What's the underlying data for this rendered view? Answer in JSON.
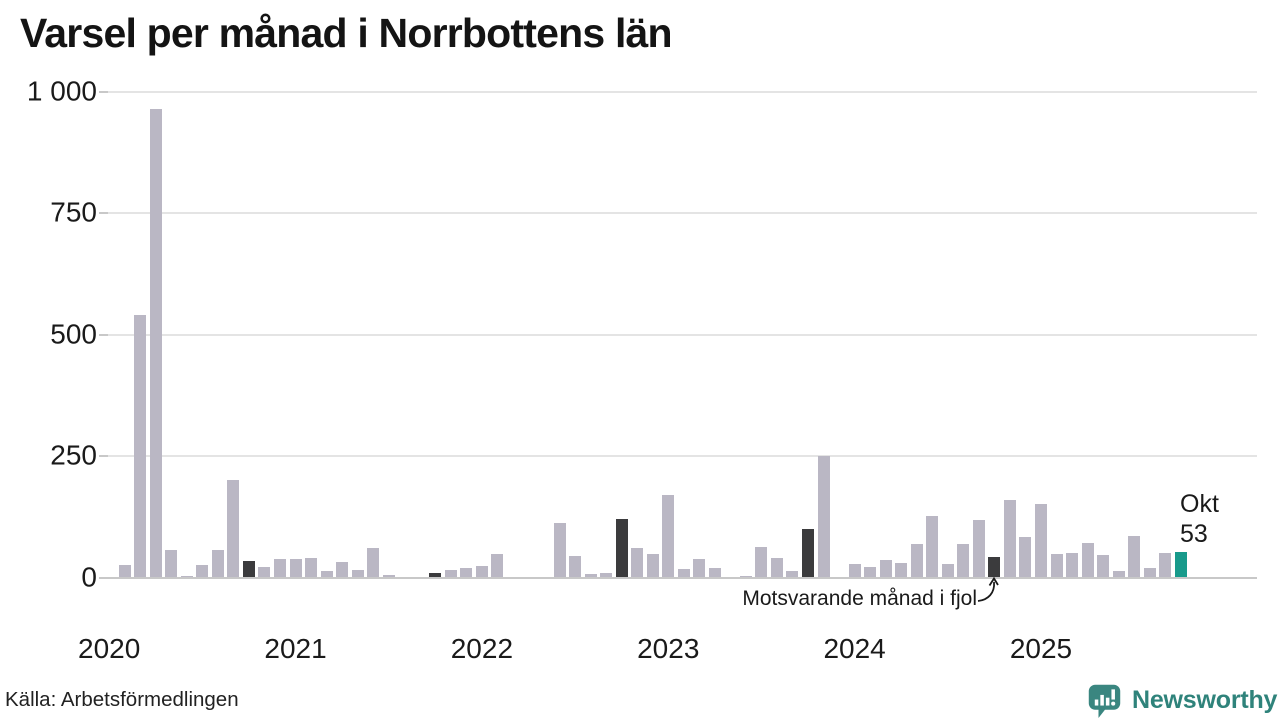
{
  "title": "Varsel per månad i Norrbottens län",
  "source": "Källa: Arbetsförmedlingen",
  "branding": {
    "name": "Newsworthy",
    "icon": "newsworthy-speech-bubble-chart-icon",
    "color": "#2f837b"
  },
  "colors": {
    "bar_default": "#bab7c4",
    "bar_last_year": "#3b3b3d",
    "bar_current": "#189a8b",
    "gridline": "#e4e4e4",
    "axis_line": "#c8c8c8",
    "text": "#1a1a1a"
  },
  "chart_data": {
    "type": "bar",
    "title": "Varsel per månad i Norrbottens län",
    "xlabel": "",
    "ylabel": "",
    "ylim": [
      0,
      1000
    ],
    "grid": "horizontal",
    "yticks": [
      {
        "value": 0,
        "label": "0"
      },
      {
        "value": 250,
        "label": "250"
      },
      {
        "value": 500,
        "label": "500"
      },
      {
        "value": 750,
        "label": "750"
      },
      {
        "value": 1000,
        "label": "1 000"
      }
    ],
    "year_ticks": [
      {
        "label": "2020",
        "month_index": -1
      },
      {
        "label": "2021",
        "month_index": 11
      },
      {
        "label": "2022",
        "month_index": 23
      },
      {
        "label": "2023",
        "month_index": 35
      },
      {
        "label": "2024",
        "month_index": 47
      },
      {
        "label": "2025",
        "month_index": 59
      }
    ],
    "annotations": {
      "last_year_note": "Motsvarande månad i fjol",
      "current_label": [
        "Okt",
        "53"
      ]
    },
    "bars": [
      {
        "month": "2020-02",
        "value": 25,
        "kind": "normal"
      },
      {
        "month": "2020-03",
        "value": 540,
        "kind": "normal"
      },
      {
        "month": "2020-04",
        "value": 965,
        "kind": "normal"
      },
      {
        "month": "2020-05",
        "value": 56,
        "kind": "normal"
      },
      {
        "month": "2020-06",
        "value": 2,
        "kind": "normal"
      },
      {
        "month": "2020-07",
        "value": 26,
        "kind": "normal"
      },
      {
        "month": "2020-08",
        "value": 56,
        "kind": "normal"
      },
      {
        "month": "2020-09",
        "value": 200,
        "kind": "normal"
      },
      {
        "month": "2020-10",
        "value": 34,
        "kind": "last_year"
      },
      {
        "month": "2020-11",
        "value": 21,
        "kind": "normal"
      },
      {
        "month": "2020-12",
        "value": 38,
        "kind": "normal"
      },
      {
        "month": "2021-01",
        "value": 38,
        "kind": "normal"
      },
      {
        "month": "2021-02",
        "value": 41,
        "kind": "normal"
      },
      {
        "month": "2021-03",
        "value": 13,
        "kind": "normal"
      },
      {
        "month": "2021-04",
        "value": 32,
        "kind": "normal"
      },
      {
        "month": "2021-05",
        "value": 16,
        "kind": "normal"
      },
      {
        "month": "2021-06",
        "value": 60,
        "kind": "normal"
      },
      {
        "month": "2021-07",
        "value": 6,
        "kind": "normal"
      },
      {
        "month": "2021-08",
        "value": 0,
        "kind": "normal"
      },
      {
        "month": "2021-09",
        "value": 0,
        "kind": "normal"
      },
      {
        "month": "2021-10",
        "value": 9,
        "kind": "last_year"
      },
      {
        "month": "2021-11",
        "value": 15,
        "kind": "normal"
      },
      {
        "month": "2021-12",
        "value": 19,
        "kind": "normal"
      },
      {
        "month": "2022-01",
        "value": 23,
        "kind": "normal"
      },
      {
        "month": "2022-02",
        "value": 48,
        "kind": "normal"
      },
      {
        "month": "2022-03",
        "value": 0,
        "kind": "normal"
      },
      {
        "month": "2022-04",
        "value": 0,
        "kind": "normal"
      },
      {
        "month": "2022-05",
        "value": 0,
        "kind": "normal"
      },
      {
        "month": "2022-06",
        "value": 112,
        "kind": "normal"
      },
      {
        "month": "2022-07",
        "value": 45,
        "kind": "normal"
      },
      {
        "month": "2022-08",
        "value": 7,
        "kind": "normal"
      },
      {
        "month": "2022-09",
        "value": 10,
        "kind": "normal"
      },
      {
        "month": "2022-10",
        "value": 120,
        "kind": "last_year"
      },
      {
        "month": "2022-11",
        "value": 60,
        "kind": "normal"
      },
      {
        "month": "2022-12",
        "value": 48,
        "kind": "normal"
      },
      {
        "month": "2023-01",
        "value": 170,
        "kind": "normal"
      },
      {
        "month": "2023-02",
        "value": 17,
        "kind": "normal"
      },
      {
        "month": "2023-03",
        "value": 38,
        "kind": "normal"
      },
      {
        "month": "2023-04",
        "value": 20,
        "kind": "normal"
      },
      {
        "month": "2023-05",
        "value": 0,
        "kind": "normal"
      },
      {
        "month": "2023-06",
        "value": 4,
        "kind": "normal"
      },
      {
        "month": "2023-07",
        "value": 62,
        "kind": "normal"
      },
      {
        "month": "2023-08",
        "value": 40,
        "kind": "normal"
      },
      {
        "month": "2023-09",
        "value": 14,
        "kind": "normal"
      },
      {
        "month": "2023-10",
        "value": 100,
        "kind": "last_year"
      },
      {
        "month": "2023-11",
        "value": 251,
        "kind": "normal"
      },
      {
        "month": "2023-12",
        "value": 0,
        "kind": "normal"
      },
      {
        "month": "2024-01",
        "value": 28,
        "kind": "normal"
      },
      {
        "month": "2024-02",
        "value": 21,
        "kind": "normal"
      },
      {
        "month": "2024-03",
        "value": 36,
        "kind": "normal"
      },
      {
        "month": "2024-04",
        "value": 29,
        "kind": "normal"
      },
      {
        "month": "2024-05",
        "value": 68,
        "kind": "normal"
      },
      {
        "month": "2024-06",
        "value": 127,
        "kind": "normal"
      },
      {
        "month": "2024-07",
        "value": 27,
        "kind": "normal"
      },
      {
        "month": "2024-08",
        "value": 70,
        "kind": "normal"
      },
      {
        "month": "2024-09",
        "value": 118,
        "kind": "normal"
      },
      {
        "month": "2024-10",
        "value": 42,
        "kind": "last_year"
      },
      {
        "month": "2024-11",
        "value": 160,
        "kind": "normal"
      },
      {
        "month": "2024-12",
        "value": 84,
        "kind": "normal"
      },
      {
        "month": "2025-01",
        "value": 152,
        "kind": "normal"
      },
      {
        "month": "2025-02",
        "value": 48,
        "kind": "normal"
      },
      {
        "month": "2025-03",
        "value": 50,
        "kind": "normal"
      },
      {
        "month": "2025-04",
        "value": 72,
        "kind": "normal"
      },
      {
        "month": "2025-05",
        "value": 47,
        "kind": "normal"
      },
      {
        "month": "2025-06",
        "value": 14,
        "kind": "normal"
      },
      {
        "month": "2025-07",
        "value": 85,
        "kind": "normal"
      },
      {
        "month": "2025-08",
        "value": 19,
        "kind": "normal"
      },
      {
        "month": "2025-09",
        "value": 51,
        "kind": "normal"
      },
      {
        "month": "2025-10",
        "value": 53,
        "kind": "current"
      }
    ]
  }
}
